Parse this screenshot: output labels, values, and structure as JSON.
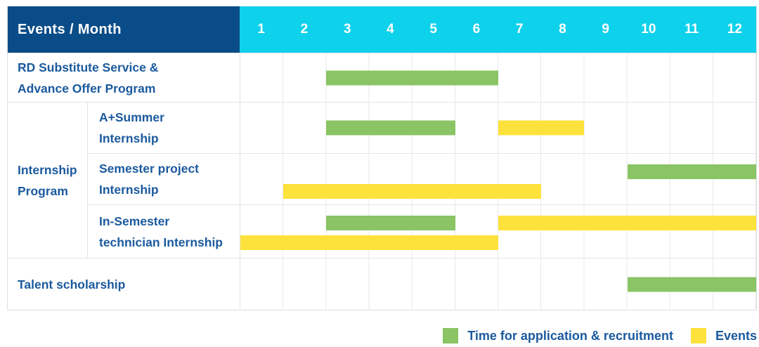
{
  "header": {
    "events_month_label": "Events / Month",
    "months": [
      "1",
      "2",
      "3",
      "4",
      "5",
      "6",
      "7",
      "8",
      "9",
      "10",
      "11",
      "12"
    ]
  },
  "colors": {
    "navy": "#0a4c87",
    "cyan": "#0ed1ec",
    "green": "#8ac464",
    "yellow": "#fde23c",
    "label_blue": "#1b5a9e"
  },
  "group_label_lines": [
    "Internship",
    "Program"
  ],
  "rows": [
    {
      "name": "rd-substitute-service-advance-offer-program",
      "label_lines": [
        "RD Substitute Service &",
        "Advance Offer Program"
      ],
      "bars": [
        {
          "color": "green",
          "start": 3,
          "end": 6,
          "lane": "single"
        }
      ]
    },
    {
      "name": "a-plus-summer-internship",
      "label_lines": [
        "A+Summer",
        "Internship"
      ],
      "bars": [
        {
          "color": "green",
          "start": 3,
          "end": 5,
          "lane": "single"
        },
        {
          "color": "yellow",
          "start": 7,
          "end": 8,
          "lane": "single"
        }
      ]
    },
    {
      "name": "semester-project-internship",
      "label_lines": [
        "Semester project",
        "Internship"
      ],
      "bars": [
        {
          "color": "green",
          "start": 10,
          "end": 12,
          "lane": "top"
        },
        {
          "color": "yellow",
          "start": 2,
          "end": 7,
          "lane": "bottom"
        }
      ]
    },
    {
      "name": "in-semester-technician-internship",
      "label_lines": [
        "In-Semester",
        "technician Internship"
      ],
      "bars": [
        {
          "color": "green",
          "start": 3,
          "end": 5,
          "lane": "top"
        },
        {
          "color": "yellow",
          "start": 7,
          "end": 12,
          "lane": "top"
        },
        {
          "color": "yellow",
          "start": 1,
          "end": 6,
          "lane": "bottom"
        }
      ]
    },
    {
      "name": "talent-scholarship",
      "label_lines": [
        "Talent scholarship"
      ],
      "bars": [
        {
          "color": "green",
          "start": 10,
          "end": 12,
          "lane": "single"
        }
      ]
    }
  ],
  "legend": {
    "items": [
      {
        "color": "green",
        "label": "Time for application & recruitment"
      },
      {
        "color": "yellow",
        "label": "Events"
      }
    ]
  },
  "chart_data": {
    "type": "table",
    "subtype": "gantt-timeline",
    "title": "Events / Month",
    "x_axis": {
      "label": "Month",
      "ticks": [
        1,
        2,
        3,
        4,
        5,
        6,
        7,
        8,
        9,
        10,
        11,
        12
      ],
      "range": [
        1,
        12
      ]
    },
    "legend_entries": [
      {
        "label": "Time for application & recruitment",
        "color_key": "green"
      },
      {
        "label": "Events",
        "color_key": "yellow"
      }
    ],
    "legend_position": "bottom-right",
    "grid": true,
    "rows": [
      {
        "group": null,
        "event": "RD Substitute Service & Advance Offer Program",
        "application_recruitment_months": [
          [
            3,
            6
          ]
        ],
        "events_months": []
      },
      {
        "group": "Internship Program",
        "event": "A+Summer Internship",
        "application_recruitment_months": [
          [
            3,
            5
          ]
        ],
        "events_months": [
          [
            7,
            8
          ]
        ]
      },
      {
        "group": "Internship Program",
        "event": "Semester project Internship",
        "application_recruitment_months": [
          [
            10,
            12
          ]
        ],
        "events_months": [
          [
            2,
            7
          ]
        ]
      },
      {
        "group": "Internship Program",
        "event": "In-Semester technician Internship",
        "application_recruitment_months": [
          [
            3,
            5
          ]
        ],
        "events_months": [
          [
            1,
            6
          ],
          [
            7,
            12
          ]
        ]
      },
      {
        "group": null,
        "event": "Talent scholarship",
        "application_recruitment_months": [
          [
            10,
            12
          ]
        ],
        "events_months": []
      }
    ]
  }
}
